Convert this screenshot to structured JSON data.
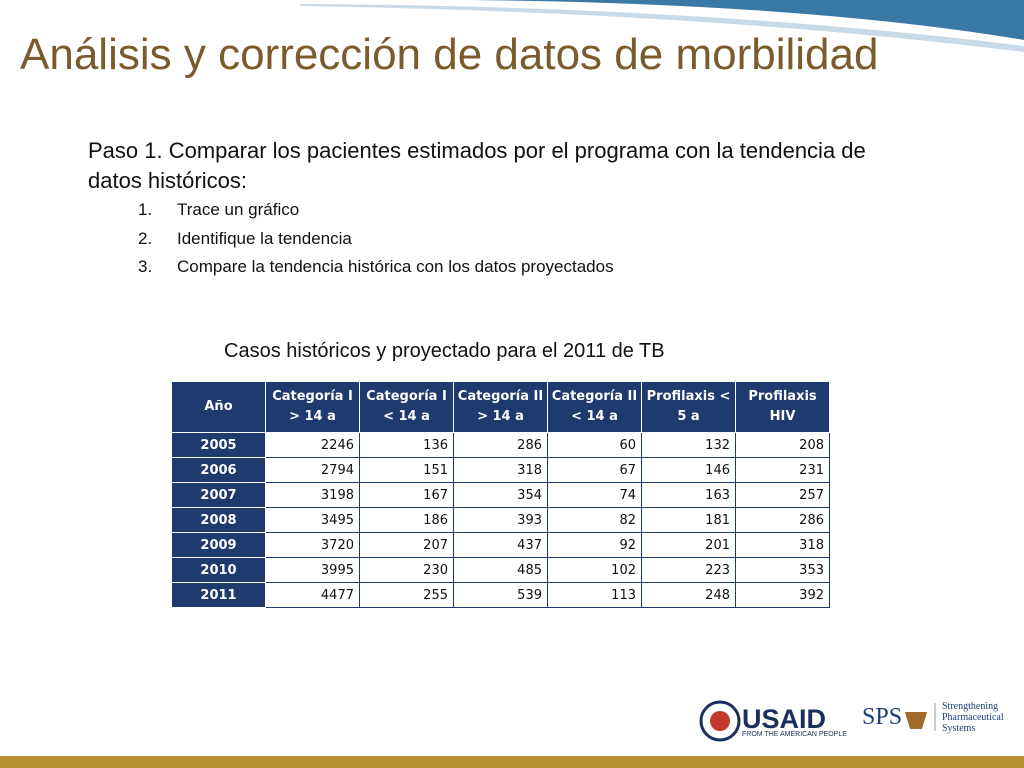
{
  "title": "Análisis y corrección de datos de morbilidad",
  "intro": "Paso 1. Comparar los pacientes estimados por el programa con la tendencia de datos históricos:",
  "steps": [
    "Trace un gráfico",
    "Identifique la tendencia",
    "Compare la tendencia histórica con los datos proyectados"
  ],
  "table": {
    "caption": "Casos históricos y proyectado para el 2011 de TB",
    "header": [
      "Año",
      "Categoría I > 14 a",
      "Categoría I < 14 a",
      "Categoría II > 14 a",
      "Categoría II < 14 a",
      "Profilaxis < 5 a",
      "Profilaxis HIV"
    ],
    "rows": [
      [
        "2005",
        2246,
        136,
        286,
        60,
        132,
        208
      ],
      [
        "2006",
        2794,
        151,
        318,
        67,
        146,
        231
      ],
      [
        "2007",
        3198,
        167,
        354,
        74,
        163,
        257
      ],
      [
        "2008",
        3495,
        186,
        393,
        82,
        181,
        286
      ],
      [
        "2009",
        3720,
        207,
        437,
        92,
        201,
        318
      ],
      [
        "2010",
        3995,
        230,
        485,
        102,
        223,
        353
      ],
      [
        "2011",
        4477,
        255,
        539,
        113,
        248,
        392
      ]
    ]
  },
  "logos": {
    "usaid": "USAID",
    "usaid_tagline": "FROM THE AMERICAN PEOPLE",
    "sps": "SPS",
    "sps_name": "Strengthening Pharmaceutical Systems"
  }
}
